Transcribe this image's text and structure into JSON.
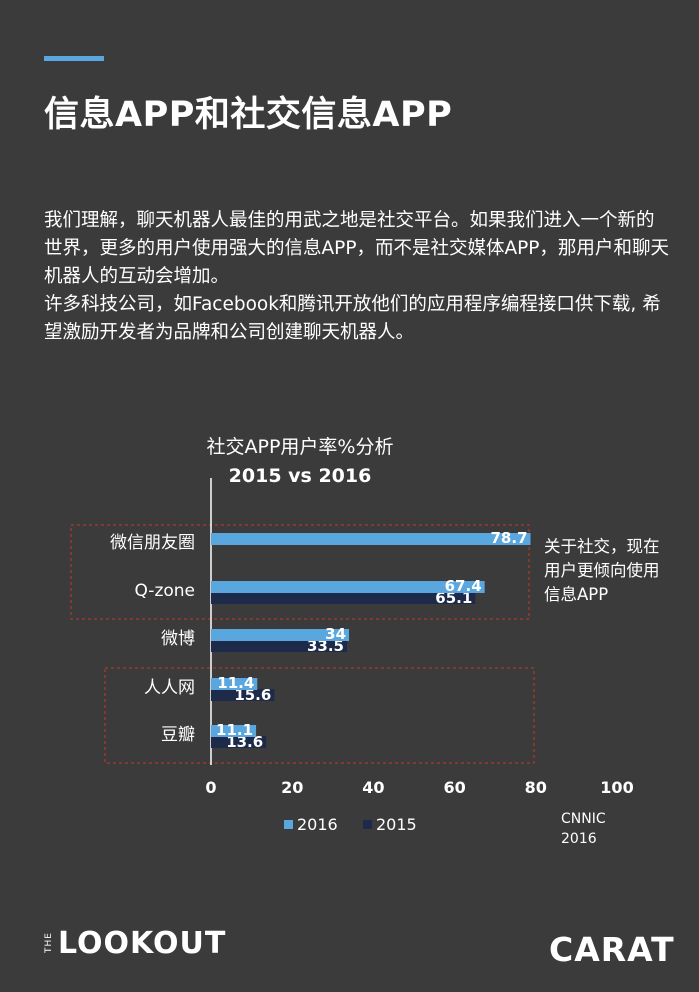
{
  "header": {
    "title": "信息APP和社交信息APP"
  },
  "body_text": [
    "我们理解，聊天机器人最佳的用武之地是社交平台。如果我们进入一个新的世界，更多的用户使用强大的信息APP，而不是社交媒体APP，那用户和聊天机器人的互动会增加。",
    "许多科技公司，如Facebook和腾讯开放他们的应用程序编程接口供下载, 希望激励开发者为品牌和公司创建聊天机器人。"
  ],
  "annotation": "关于社交，现在用户更倾向使用信息APP",
  "source": {
    "line1": "CNNIC",
    "line2": "2016"
  },
  "logos": {
    "lookout_prefix": "THE",
    "lookout_word": "LOOKOUT",
    "carat": "CARAT"
  },
  "colors": {
    "background": "#3b3b3b",
    "series_2016": "#5aa7e0",
    "series_2015": "#1e2a4a",
    "dashed_box": "#c0392b",
    "accent": "#5aa7e0"
  },
  "chart_data": {
    "type": "bar",
    "orientation": "horizontal",
    "title": "社交APP用户率%分析",
    "subtitle": "2015 vs 2016",
    "categories": [
      "微信朋友圈",
      "Q-zone",
      "微博",
      "人人网",
      "豆瓣"
    ],
    "series": [
      {
        "name": "2016",
        "values": [
          78.7,
          67.4,
          34,
          11.4,
          11.1
        ]
      },
      {
        "name": "2015",
        "values": [
          null,
          65.1,
          33.5,
          15.6,
          13.6
        ]
      }
    ],
    "value_labels": {
      "2016": [
        "78.7",
        "67.4",
        "34",
        "11.4",
        "11.1"
      ],
      "2015": [
        "",
        "65.1",
        "33.5",
        "15.6",
        "13.6"
      ]
    },
    "xlim": [
      0,
      100
    ],
    "xticks": [
      0,
      20,
      40,
      60,
      80,
      100
    ],
    "legend_position": "bottom",
    "grid": false
  }
}
